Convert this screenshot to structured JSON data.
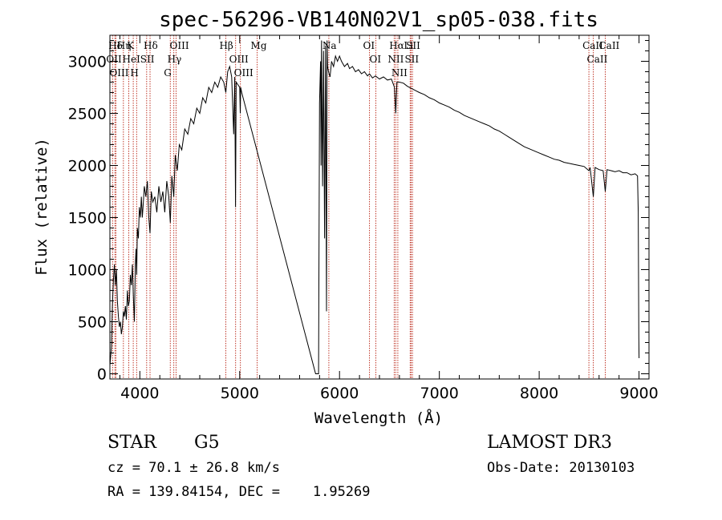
{
  "chart_data": {
    "type": "line",
    "title": "spec-56296-VB140N02V1_sp05-038.fits",
    "xlabel": "Wavelength (Å)",
    "ylabel": "Flux (relative)",
    "xlim": [
      3700,
      9100
    ],
    "ylim": [
      -50,
      3250
    ],
    "xticks": [
      4000,
      5000,
      6000,
      7000,
      8000,
      9000
    ],
    "yticks": [
      0,
      500,
      1000,
      1500,
      2000,
      2500,
      3000
    ],
    "series": [
      {
        "points": [
          [
            3700,
            80
          ],
          [
            3715,
            250
          ],
          [
            3725,
            650
          ],
          [
            3735,
            900
          ],
          [
            3745,
            1050
          ],
          [
            3755,
            850
          ],
          [
            3765,
            1000
          ],
          [
            3775,
            700
          ],
          [
            3785,
            550
          ],
          [
            3795,
            450
          ],
          [
            3805,
            500
          ],
          [
            3815,
            380
          ],
          [
            3825,
            450
          ],
          [
            3835,
            600
          ],
          [
            3845,
            550
          ],
          [
            3855,
            650
          ],
          [
            3865,
            520
          ],
          [
            3875,
            800
          ],
          [
            3885,
            650
          ],
          [
            3895,
            700
          ],
          [
            3905,
            950
          ],
          [
            3915,
            850
          ],
          [
            3925,
            1050
          ],
          [
            3935,
            750
          ],
          [
            3945,
            500
          ],
          [
            3955,
            1050
          ],
          [
            3962,
            1200
          ],
          [
            3968,
            950
          ],
          [
            3975,
            1400
          ],
          [
            3985,
            1300
          ],
          [
            3995,
            1600
          ],
          [
            4005,
            1500
          ],
          [
            4015,
            1700
          ],
          [
            4025,
            1500
          ],
          [
            4035,
            1650
          ],
          [
            4045,
            1800
          ],
          [
            4060,
            1700
          ],
          [
            4075,
            1850
          ],
          [
            4090,
            1500
          ],
          [
            4102,
            1350
          ],
          [
            4115,
            1750
          ],
          [
            4130,
            1650
          ],
          [
            4150,
            1700
          ],
          [
            4170,
            1550
          ],
          [
            4190,
            1800
          ],
          [
            4210,
            1650
          ],
          [
            4230,
            1750
          ],
          [
            4250,
            1550
          ],
          [
            4270,
            1850
          ],
          [
            4290,
            1700
          ],
          [
            4305,
            1450
          ],
          [
            4320,
            1900
          ],
          [
            4340,
            1700
          ],
          [
            4355,
            2100
          ],
          [
            4375,
            1950
          ],
          [
            4395,
            2200
          ],
          [
            4420,
            2150
          ],
          [
            4450,
            2350
          ],
          [
            4480,
            2300
          ],
          [
            4510,
            2450
          ],
          [
            4540,
            2400
          ],
          [
            4570,
            2550
          ],
          [
            4600,
            2500
          ],
          [
            4630,
            2650
          ],
          [
            4660,
            2600
          ],
          [
            4690,
            2750
          ],
          [
            4720,
            2700
          ],
          [
            4750,
            2800
          ],
          [
            4780,
            2750
          ],
          [
            4810,
            2850
          ],
          [
            4840,
            2800
          ],
          [
            4861,
            2700
          ],
          [
            4880,
            2900
          ],
          [
            4900,
            2950
          ],
          [
            4920,
            2850
          ],
          [
            4940,
            2300
          ],
          [
            4950,
            2850
          ],
          [
            4958,
            1600
          ],
          [
            4965,
            2800
          ],
          [
            5000,
            2750
          ],
          [
            5006,
            2500
          ],
          [
            5010,
            2750
          ],
          [
            5020,
            2700
          ],
          [
            5760,
            0
          ],
          [
            5790,
            0
          ],
          [
            5800,
            2600
          ],
          [
            5810,
            3000
          ],
          [
            5815,
            2000
          ],
          [
            5820,
            3200
          ],
          [
            5830,
            1800
          ],
          [
            5840,
            3100
          ],
          [
            5850,
            1300
          ],
          [
            5860,
            3150
          ],
          [
            5870,
            600
          ],
          [
            5875,
            3200
          ],
          [
            5880,
            2950
          ],
          [
            5890,
            2900
          ],
          [
            5905,
            2850
          ],
          [
            5920,
            3000
          ],
          [
            5940,
            2950
          ],
          [
            5960,
            3050
          ],
          [
            5980,
            3000
          ],
          [
            6000,
            3050
          ],
          [
            6020,
            3000
          ],
          [
            6050,
            2950
          ],
          [
            6080,
            2980
          ],
          [
            6100,
            2930
          ],
          [
            6130,
            2950
          ],
          [
            6160,
            2900
          ],
          [
            6190,
            2920
          ],
          [
            6220,
            2880
          ],
          [
            6250,
            2900
          ],
          [
            6280,
            2860
          ],
          [
            6300,
            2880
          ],
          [
            6330,
            2840
          ],
          [
            6360,
            2860
          ],
          [
            6400,
            2830
          ],
          [
            6440,
            2850
          ],
          [
            6480,
            2820
          ],
          [
            6520,
            2830
          ],
          [
            6550,
            2750
          ],
          [
            6563,
            2500
          ],
          [
            6575,
            2800
          ],
          [
            6600,
            2800
          ],
          [
            6640,
            2790
          ],
          [
            6680,
            2760
          ],
          [
            6720,
            2740
          ],
          [
            6760,
            2720
          ],
          [
            6800,
            2700
          ],
          [
            6850,
            2680
          ],
          [
            6900,
            2650
          ],
          [
            6950,
            2630
          ],
          [
            7000,
            2600
          ],
          [
            7050,
            2580
          ],
          [
            7100,
            2560
          ],
          [
            7150,
            2530
          ],
          [
            7200,
            2510
          ],
          [
            7250,
            2480
          ],
          [
            7300,
            2460
          ],
          [
            7350,
            2440
          ],
          [
            7400,
            2420
          ],
          [
            7450,
            2400
          ],
          [
            7500,
            2380
          ],
          [
            7550,
            2350
          ],
          [
            7600,
            2330
          ],
          [
            7650,
            2300
          ],
          [
            7700,
            2270
          ],
          [
            7750,
            2240
          ],
          [
            7800,
            2210
          ],
          [
            7850,
            2180
          ],
          [
            7900,
            2160
          ],
          [
            7950,
            2140
          ],
          [
            8000,
            2120
          ],
          [
            8050,
            2100
          ],
          [
            8100,
            2080
          ],
          [
            8150,
            2060
          ],
          [
            8200,
            2050
          ],
          [
            8250,
            2030
          ],
          [
            8300,
            2020
          ],
          [
            8350,
            2010
          ],
          [
            8400,
            2000
          ],
          [
            8450,
            1990
          ],
          [
            8498,
            1950
          ],
          [
            8510,
            1980
          ],
          [
            8542,
            1700
          ],
          [
            8560,
            1980
          ],
          [
            8600,
            1960
          ],
          [
            8640,
            1950
          ],
          [
            8662,
            1750
          ],
          [
            8680,
            1960
          ],
          [
            8720,
            1950
          ],
          [
            8760,
            1940
          ],
          [
            8800,
            1950
          ],
          [
            8840,
            1930
          ],
          [
            8880,
            1930
          ],
          [
            8920,
            1910
          ],
          [
            8960,
            1920
          ],
          [
            8985,
            1900
          ],
          [
            8992,
            1550
          ],
          [
            8998,
            350
          ],
          [
            9000,
            150
          ]
        ]
      }
    ],
    "lines": [
      {
        "label": "Hδ",
        "wl": 3750
      },
      {
        "label": "OII",
        "wl": 3727
      },
      {
        "label": "OIII",
        "wl": 3760
      },
      {
        "label": "K",
        "wl": 3934
      },
      {
        "label": "HeI",
        "wl": 3889
      },
      {
        "label": "Hη",
        "wl": 3835
      },
      {
        "label": "SII",
        "wl": 4068
      },
      {
        "label": "H",
        "wl": 3968
      },
      {
        "label": "Hδ",
        "wl": 4102
      },
      {
        "label": "OIII",
        "wl": 4363
      },
      {
        "label": "Hγ",
        "wl": 4340
      },
      {
        "label": "G",
        "wl": 4305
      },
      {
        "label": "Hβ",
        "wl": 4861
      },
      {
        "label": "OIII",
        "wl": 4959
      },
      {
        "label": "OIII",
        "wl": 5007
      },
      {
        "label": "Mg",
        "wl": 5175
      },
      {
        "label": "Na",
        "wl": 5893
      },
      {
        "label": "OI",
        "wl": 6300
      },
      {
        "label": "OI",
        "wl": 6364
      },
      {
        "label": "Hα",
        "wl": 6563
      },
      {
        "label": "NII",
        "wl": 6548
      },
      {
        "label": "NII",
        "wl": 6584
      },
      {
        "label": "SII",
        "wl": 6717
      },
      {
        "label": "Li",
        "wl": 6708
      },
      {
        "label": "SII",
        "wl": 6731
      },
      {
        "label": "CaII",
        "wl": 8498
      },
      {
        "label": "CaII",
        "wl": 8542
      },
      {
        "label": "CaII",
        "wl": 8662
      }
    ]
  },
  "info": {
    "class": "STAR",
    "subclass": "G5",
    "survey": "LAMOST DR3",
    "cz": "cz = 70.1 ± 26.8 km/s",
    "obs_date": "Obs-Date: 20130103",
    "radec": "RA = 139.84154, DEC =    1.95269"
  },
  "colors": {
    "line_marker": "#c0392b",
    "spectrum": "#000000",
    "axis": "#000000"
  }
}
